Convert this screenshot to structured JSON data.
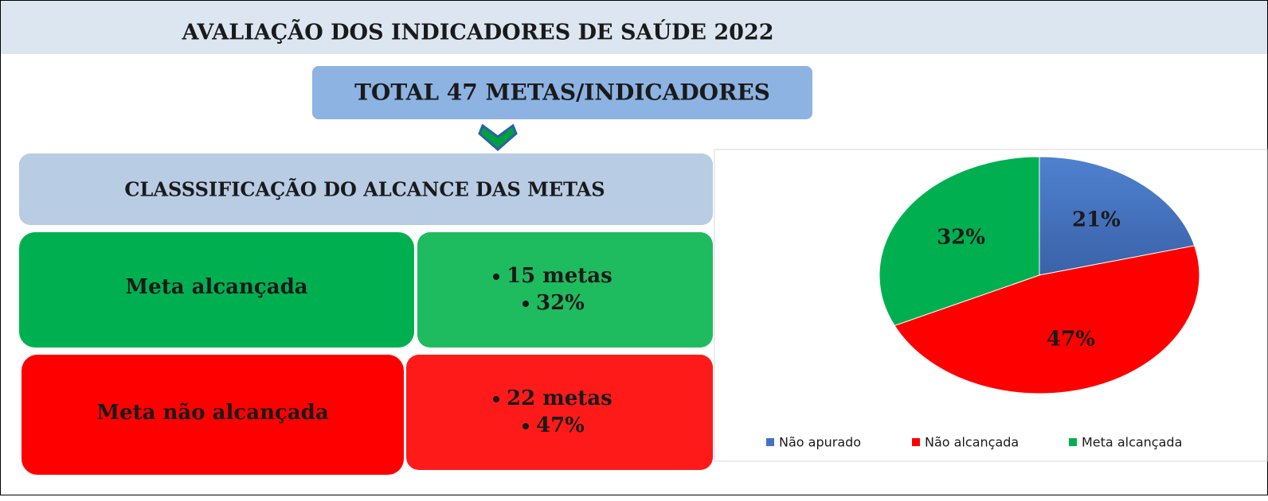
{
  "title": "AVALIAÇÃO DOS INDICADORES DE SAÚDE 2022",
  "total": "TOTAL 47 METAS/INDICADORES",
  "classification": "CLASSSIFICAÇÃO DO ALCANCE DAS METAS",
  "rows": [
    {
      "label": "Meta alcançada",
      "items": [
        "15 metas",
        "32%"
      ]
    },
    {
      "label": "Meta não alcançada",
      "items": [
        "22 metas",
        "47%"
      ]
    }
  ],
  "chart_data": {
    "type": "pie",
    "categories": [
      "Não apurado",
      "Não alcançada",
      "Meta alcançada"
    ],
    "values": [
      21,
      47,
      32
    ],
    "value_labels": [
      "21%",
      "47%",
      "32%"
    ],
    "colors": [
      "#4472c4",
      "#ff0000",
      "#00b050"
    ],
    "legend": "bottom"
  }
}
